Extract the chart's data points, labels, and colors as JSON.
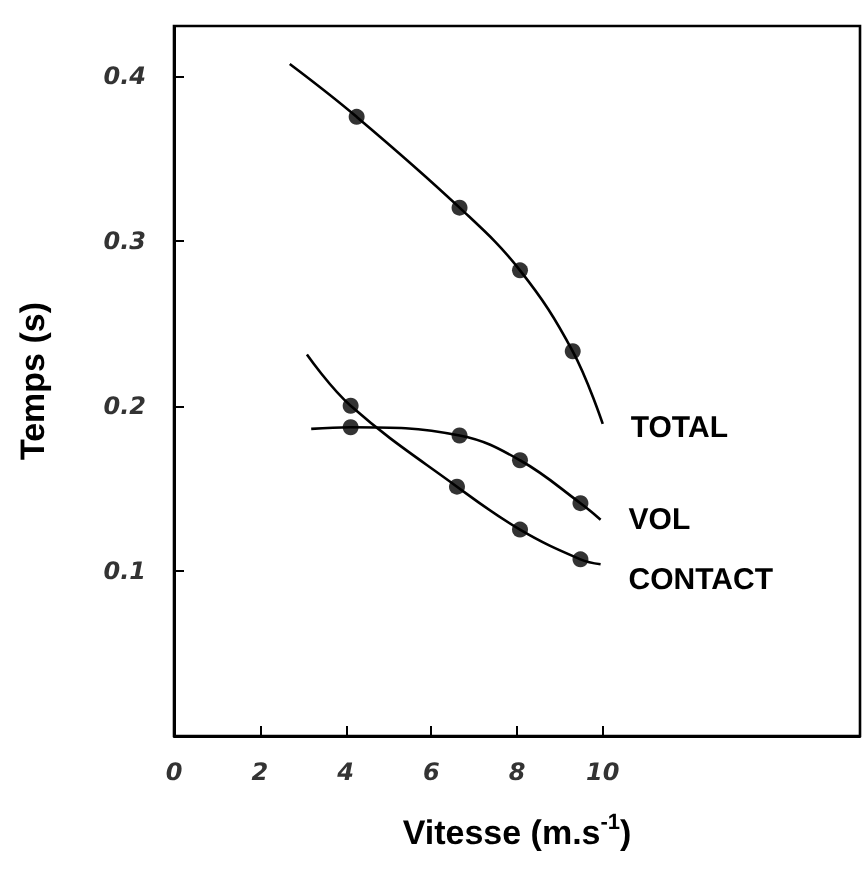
{
  "chart_data": {
    "type": "line",
    "xlabel": "Vitesse (m.s$^{-1}$)",
    "ylabel": "Temps (s)",
    "xlim": [
      0,
      16
    ],
    "xticks": [
      0,
      2,
      4,
      6,
      8,
      10
    ],
    "ylim": [
      0,
      0.43
    ],
    "yticks": [
      0.1,
      0.2,
      0.3,
      0.4
    ],
    "grid": false,
    "legend": false,
    "series": [
      {
        "name": "TOTAL",
        "marker": "none",
        "color": "#000000",
        "x": [
          2.7,
          4.26,
          6.66,
          8.07,
          9.3,
          10
        ],
        "values": [
          0.407,
          0.375,
          0.32,
          0.282,
          0.233,
          0.189
        ]
      },
      {
        "name": "VOL",
        "marker": "none",
        "color": "#000000",
        "x": [
          3.2,
          4.12,
          6.66,
          8.07,
          9.48,
          9.95
        ],
        "values": [
          0.186,
          0.187,
          0.182,
          0.167,
          0.141,
          0.131
        ]
      },
      {
        "name": "CONTACT",
        "marker": "none",
        "color": "#000000",
        "x": [
          3.1,
          4.12,
          6.6,
          8.07,
          9.48,
          9.95
        ],
        "values": [
          0.231,
          0.2,
          0.151,
          0.125,
          0.107,
          0.104
        ]
      },
      {
        "type": "scatter",
        "marker": "circle",
        "color": "#000000",
        "x": [
          4.26,
          6.66,
          8.07,
          9.3,
          4.12,
          6.66,
          8.07,
          9.48,
          4.12,
          6.6,
          8.07,
          9.48
        ],
        "values": [
          0.375,
          0.32,
          0.282,
          0.233,
          0.187,
          0.182,
          0.167,
          0.141,
          0.2,
          0.151,
          0.125,
          0.107
        ]
      }
    ]
  }
}
